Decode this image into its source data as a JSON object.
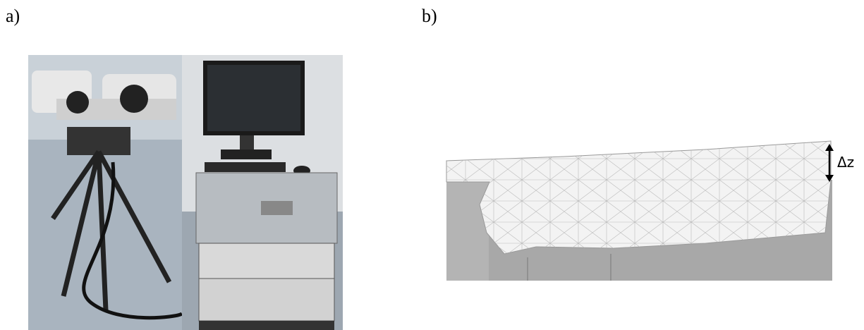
{
  "panels": [
    {
      "label": "a)"
    },
    {
      "label": "b)",
      "annotation": "Δz"
    }
  ]
}
